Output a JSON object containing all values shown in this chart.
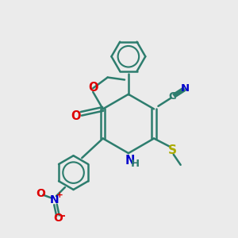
{
  "bg_color": "#ebebeb",
  "bond_color": "#2d7d6e",
  "N_color": "#0000cc",
  "O_color": "#dd0000",
  "S_color": "#aaaa00",
  "C_color": "#2d7d6e",
  "line_width": 1.8,
  "figsize": [
    3.0,
    3.0
  ],
  "dpi": 100,
  "xlim": [
    0,
    10
  ],
  "ylim": [
    0,
    10
  ]
}
